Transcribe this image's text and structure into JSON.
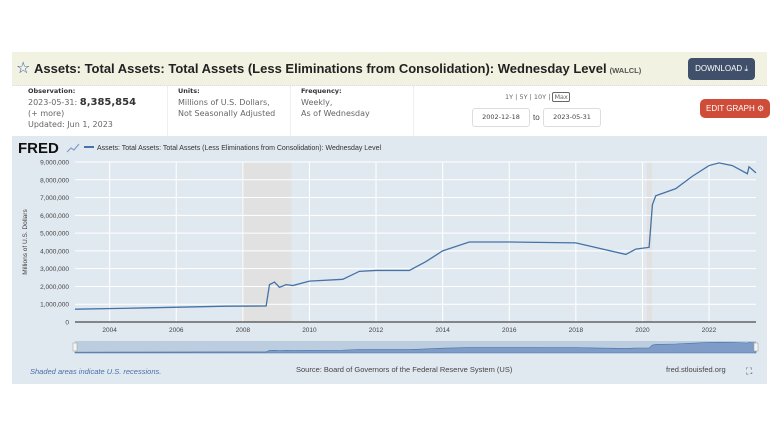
{
  "header": {
    "title": "Assets: Total Assets: Total Assets (Less Eliminations from Consolidation): Wednesday Level",
    "series_id": "(WALCL)",
    "download_label": "DOWNLOAD",
    "edit_label": "EDIT GRAPH"
  },
  "observation": {
    "label": "Observation:",
    "date": "2023-05-31:",
    "value": "8,385,854",
    "more": "(+ more)",
    "updated": "Updated: Jun 1, 2023"
  },
  "units": {
    "label": "Units:",
    "line1": "Millions of U.S. Dollars,",
    "line2": "Not Seasonally Adjusted"
  },
  "frequency": {
    "label": "Frequency:",
    "line1": "Weekly,",
    "line2": "As of Wednesday"
  },
  "range": {
    "options": [
      "1Y",
      "5Y",
      "10Y",
      "Max"
    ],
    "selected": "Max",
    "start": "2002-12-18",
    "to": "to",
    "end": "2023-05-31"
  },
  "footer": {
    "note": "Shaded areas indicate U.S. recessions.",
    "source": "Source: Board of Governors of the Federal Reserve System (US)",
    "site": "fred.stlouisfed.org"
  },
  "logo": "FRED",
  "colors": {
    "line": "#4572a7",
    "recession": "#e1e1e1",
    "panel": "#e1e9f0",
    "download": "#40506b",
    "edit": "#cf4d38"
  },
  "chart_data": {
    "type": "line",
    "ylabel": "Millions of U.S. Dollars",
    "xlim": [
      2002.96,
      2023.41
    ],
    "ylim": [
      0,
      9000000
    ],
    "yticks": [
      "0",
      "1,000,000",
      "2,000,000",
      "3,000,000",
      "4,000,000",
      "5,000,000",
      "6,000,000",
      "7,000,000",
      "8,000,000",
      "9,000,000"
    ],
    "xticks": [
      "2004",
      "2006",
      "2008",
      "2010",
      "2012",
      "2014",
      "2016",
      "2018",
      "2020",
      "2022"
    ],
    "grid": true,
    "legend": "top-left",
    "recessions": [
      [
        2007.96,
        2009.46
      ],
      [
        2020.13,
        2020.29
      ]
    ],
    "series": [
      {
        "name": "Assets: Total Assets: Total Assets (Less Eliminations from Consolidation): Wednesday Level",
        "x": [
          2002.96,
          2005,
          2007.5,
          2008.7,
          2008.8,
          2008.95,
          2009.1,
          2009.3,
          2009.5,
          2010,
          2011,
          2011.5,
          2012,
          2013,
          2013.5,
          2014,
          2014.8,
          2016,
          2018,
          2019.5,
          2019.8,
          2020.2,
          2020.3,
          2020.4,
          2021,
          2021.5,
          2022,
          2022.3,
          2022.7,
          2023.15,
          2023.2,
          2023.41
        ],
        "y": [
          720000,
          790000,
          890000,
          900000,
          2100000,
          2250000,
          1950000,
          2100000,
          2050000,
          2300000,
          2400000,
          2850000,
          2900000,
          2900000,
          3400000,
          4000000,
          4500000,
          4500000,
          4450000,
          3800000,
          4100000,
          4200000,
          6600000,
          7100000,
          7500000,
          8200000,
          8800000,
          8950000,
          8800000,
          8340000,
          8730000,
          8385854
        ]
      }
    ]
  }
}
